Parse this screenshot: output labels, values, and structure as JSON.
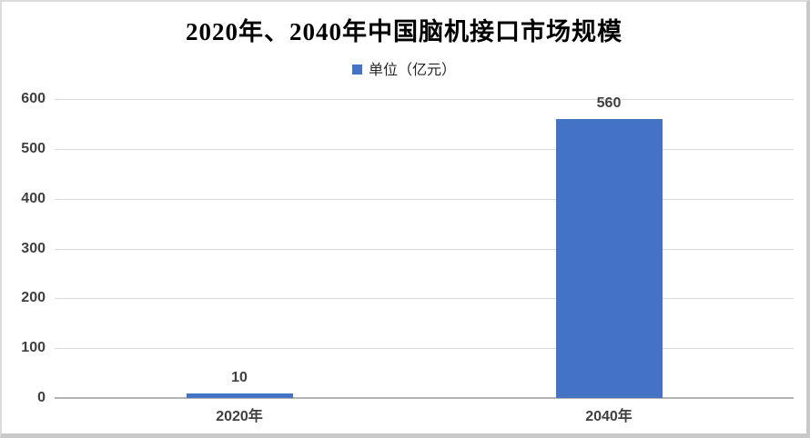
{
  "chart_data": {
    "type": "bar",
    "title": "2020年、2040年中国脑机接口市场规模",
    "legend": {
      "position": "top",
      "entries": [
        "单位（亿元）"
      ]
    },
    "categories": [
      "2020年",
      "2040年"
    ],
    "values": [
      10,
      560
    ],
    "data_labels": [
      "10",
      "560"
    ],
    "xlabel": "",
    "ylabel": "",
    "ylim": [
      0,
      600
    ],
    "yticks": [
      "0",
      "100",
      "200",
      "300",
      "400",
      "500",
      "600"
    ],
    "grid": true,
    "colors": {
      "bar": "#4472C4",
      "legend_swatch": "#4472C4",
      "gridline": "#D9D9D9",
      "axis_line": "#B3B3B3",
      "tick_label": "#404040",
      "data_label": "#404040",
      "title": "#000000",
      "frame_border": "#C9C9C9"
    }
  }
}
